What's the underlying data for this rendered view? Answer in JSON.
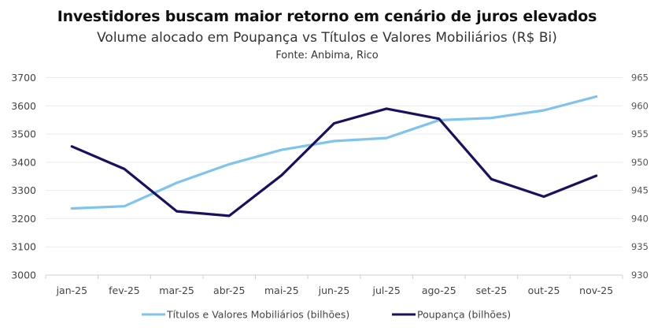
{
  "chart_data": {
    "type": "line",
    "title": "Investidores buscam maior retorno em cenário de juros elevados",
    "subtitle": "Volume alocado em Poupança vs Títulos e Valores Mobiliários (R$ Bi)",
    "source": "Fonte: Anbima, Rico",
    "categories": [
      "jan-25",
      "fev-25",
      "mar-25",
      "abr-25",
      "mai-25",
      "jun-25",
      "jul-25",
      "ago-25",
      "set-25",
      "out-25",
      "nov-25"
    ],
    "series": [
      {
        "name": "Títulos e Valores Mobiliários (bilhões)",
        "axis": "left",
        "color": "#7fc4ec",
        "values": [
          3236,
          3244,
          3327,
          3393,
          3444,
          3475,
          3486,
          3549,
          3557,
          3584,
          3633
        ]
      },
      {
        "name": "Poupança (bilhões)",
        "axis": "right",
        "color": "#1a1060",
        "values": [
          952.8,
          948.8,
          941.3,
          940.5,
          947.7,
          956.9,
          959.5,
          957.7,
          947.0,
          943.9,
          947.6
        ]
      }
    ],
    "yaxis_left": {
      "min": 3000,
      "max": 3700,
      "ticks": [
        3000,
        3100,
        3200,
        3300,
        3400,
        3500,
        3600,
        3700
      ]
    },
    "yaxis_right": {
      "min": 930,
      "max": 965,
      "ticks": [
        930,
        935,
        940,
        945,
        950,
        955,
        960,
        965
      ]
    },
    "xlabel": "",
    "ylabel": "",
    "grid": true,
    "legend_position": "bottom"
  }
}
